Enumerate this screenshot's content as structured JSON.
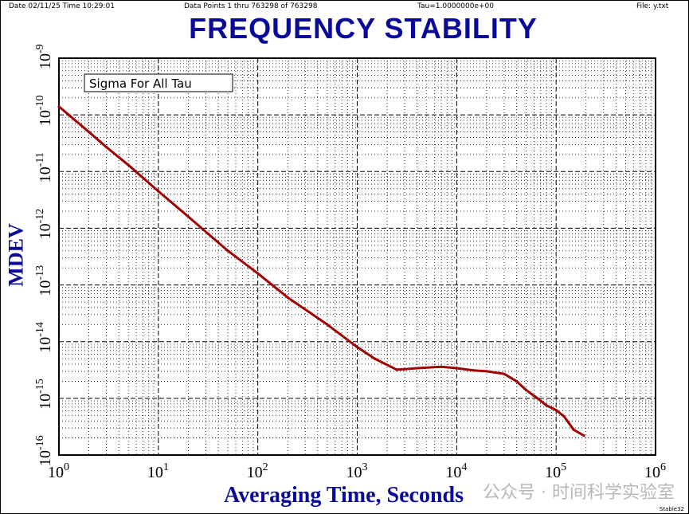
{
  "header": {
    "date": "Date  02/11/25  Time  10:29:01",
    "points": "Data Points 1 thru 763298 of 763298",
    "tau": "Tau=1.0000000e+00",
    "file": "File: y.txt"
  },
  "footer": "Stable32",
  "watermark": "公众号 · 时间科学实验室",
  "chart_data": {
    "type": "line",
    "title": "FREQUENCY STABILITY",
    "xlabel": "Averaging Time, Seconds",
    "ylabel": "MDEV",
    "xscale": "log",
    "yscale": "log",
    "xlim": [
      1,
      1000000
    ],
    "ylim": [
      1e-16,
      1e-09
    ],
    "xticks": [
      "10^0",
      "10^1",
      "10^2",
      "10^3",
      "10^4",
      "10^5",
      "10^6"
    ],
    "yticks": [
      "10^-9",
      "10^-10",
      "10^-11",
      "10^-12",
      "10^-13",
      "10^-14",
      "10^-15",
      "10^-16"
    ],
    "grid": true,
    "legend": {
      "text": "Sigma For All Tau",
      "position": "top-left"
    },
    "color": "#a00000",
    "series": [
      {
        "x": [
          1,
          2,
          3,
          5,
          10,
          20,
          50,
          100,
          200,
          500,
          1000,
          1500,
          2500,
          4000,
          7000,
          10000,
          15000,
          20000,
          30000,
          40000,
          50000,
          65000,
          80000,
          100000,
          120000,
          150000,
          190000
        ],
        "y": [
          1.4e-10,
          5e-11,
          2.7e-11,
          1.3e-11,
          4.5e-12,
          1.6e-12,
          4e-13,
          1.6e-13,
          6e-14,
          2e-14,
          8e-15,
          5e-15,
          3.2e-15,
          3.4e-15,
          3.6e-15,
          3.4e-15,
          3.1e-15,
          3e-15,
          2.7e-15,
          2e-15,
          1.4e-15,
          1e-15,
          7.5e-16,
          6.2e-16,
          4.8e-16,
          2.8e-16,
          2.2e-16
        ]
      }
    ]
  }
}
